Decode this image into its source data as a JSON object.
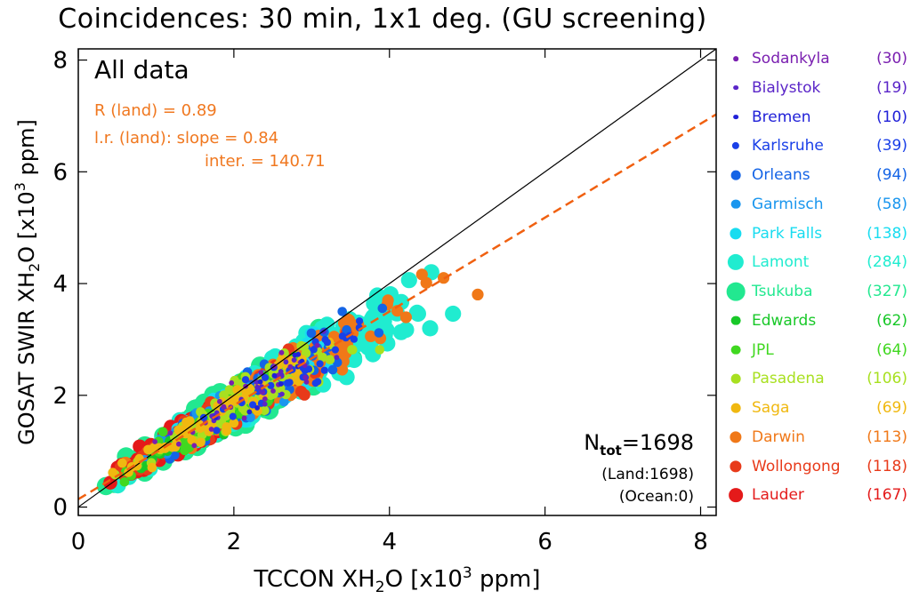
{
  "page_title": "Coincidences: 30 min, 1x1 deg. (GU screening)",
  "panel_label": "All data",
  "stats": {
    "r_line": "R (land) = 0.89",
    "slope_line": "l.r. (land): slope = 0.84",
    "inter_line": "inter. = 140.71"
  },
  "ntot": {
    "prefix": "N",
    "subscript": "tot",
    "value": "=1698",
    "land": "(Land:1698)",
    "ocean": "(Ocean:0)"
  },
  "colors": {
    "fit_line": "#f06010",
    "one_to_one": "#000000",
    "stats_text": "#f07820"
  },
  "chart_data": {
    "type": "scatter",
    "title": "Coincidences: 30 min, 1x1 deg. (GU screening)",
    "xlabel": "TCCON XH₂O [x10³ ppm]",
    "ylabel": "GOSAT SWIR XH₂O [x10³ ppm]",
    "xlim": [
      0,
      8.2
    ],
    "ylim": [
      -0.15,
      8.2
    ],
    "xticks": [
      "0",
      "2",
      "4",
      "6",
      "8"
    ],
    "yticks": [
      "0",
      "2",
      "4",
      "6",
      "8"
    ],
    "one_to_one_line": {
      "slope": 1.0,
      "intercept": 0.0
    },
    "fit_line": {
      "slope": 0.84,
      "intercept_ppm": 140.71
    },
    "series": [
      {
        "name": "Sodankyla",
        "count": "(30)",
        "n": 30,
        "color": "#7a1fb0",
        "size": 1,
        "center": 2.2,
        "spread": 1.0
      },
      {
        "name": "Bialystok",
        "count": "(19)",
        "n": 19,
        "color": "#5a25c8",
        "size": 1,
        "center": 2.4,
        "spread": 1.0
      },
      {
        "name": "Bremen",
        "count": "(10)",
        "n": 10,
        "color": "#2020d8",
        "size": 1,
        "center": 2.5,
        "spread": 1.0
      },
      {
        "name": "Karlsruhe",
        "count": "(39)",
        "n": 39,
        "color": "#1a40e8",
        "size": 2,
        "center": 2.6,
        "spread": 1.0
      },
      {
        "name": "Orleans",
        "count": "(94)",
        "n": 94,
        "color": "#1464e6",
        "size": 3,
        "center": 2.3,
        "spread": 1.1
      },
      {
        "name": "Garmisch",
        "count": "(58)",
        "n": 58,
        "color": "#1a96ee",
        "size": 3,
        "center": 1.8,
        "spread": 0.9
      },
      {
        "name": "Park Falls",
        "count": "(138)",
        "n": 138,
        "color": "#18dcf0",
        "size": 4,
        "center": 2.4,
        "spread": 1.3
      },
      {
        "name": "Lamont",
        "count": "(284)",
        "n": 284,
        "color": "#20ecd0",
        "size": 6,
        "center": 2.6,
        "spread": 1.6
      },
      {
        "name": "Tsukuba",
        "count": "(327)",
        "n": 327,
        "color": "#22e890",
        "size": 7,
        "center": 1.9,
        "spread": 1.3
      },
      {
        "name": "Edwards",
        "count": "(62)",
        "n": 62,
        "color": "#18c828",
        "size": 3,
        "center": 1.7,
        "spread": 0.9
      },
      {
        "name": "JPL",
        "count": "(64)",
        "n": 64,
        "color": "#40d820",
        "size": 3,
        "center": 1.9,
        "spread": 1.0
      },
      {
        "name": "Pasadena",
        "count": "(106)",
        "n": 106,
        "color": "#a8e020",
        "size": 3,
        "center": 2.2,
        "spread": 1.2
      },
      {
        "name": "Saga",
        "count": "(69)",
        "n": 69,
        "color": "#f0b810",
        "size": 3,
        "center": 1.8,
        "spread": 1.1
      },
      {
        "name": "Darwin",
        "count": "(113)",
        "n": 113,
        "color": "#f07818",
        "size": 4,
        "center": 2.7,
        "spread": 1.6
      },
      {
        "name": "Wollongong",
        "count": "(118)",
        "n": 118,
        "color": "#e83a1a",
        "size": 4,
        "center": 1.8,
        "spread": 1.0
      },
      {
        "name": "Lauder",
        "count": "(167)",
        "n": 167,
        "color": "#e41a1a",
        "size": 5,
        "center": 1.3,
        "spread": 0.7
      }
    ]
  }
}
